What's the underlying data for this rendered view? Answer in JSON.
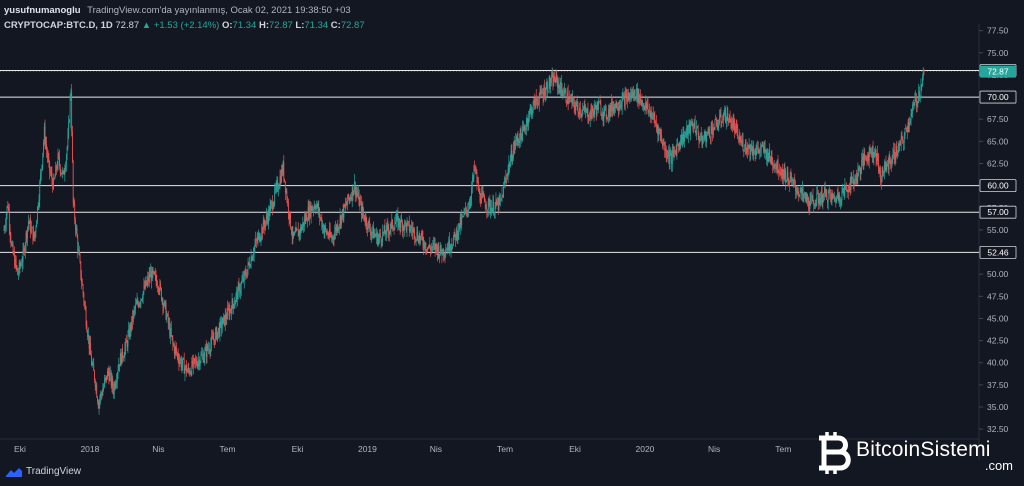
{
  "header": {
    "author": "yusufnumanoglu",
    "published": "TradingView.com'da yayınlanmış, Ocak 02, 2021 19:38:50 +03",
    "symbol": "CRYPTOCAP:BTC.D, 1D",
    "last": "72.87",
    "change": "▲ +1.53 (+2.14%)",
    "o_label": "O:",
    "o_value": "71.34",
    "h_label": "H:",
    "h_value": "72.87",
    "l_label": "L:",
    "l_value": "71.34",
    "c_label": "C:",
    "c_value": "72.87"
  },
  "footer": {
    "logo_text": "TradingView"
  },
  "watermark": {
    "brand": "BitcoinSistemi",
    "suffix": ".com"
  },
  "colors": {
    "background": "#131722",
    "up": "#26a69a",
    "down": "#ef5350",
    "hline": "#ffffff",
    "price_tag": "#26a69a",
    "axis_text": "#b2b5be"
  },
  "chart_data": {
    "type": "candlestick",
    "title": "CRYPTOCAP:BTC.D, 1D",
    "xlabel": "",
    "ylabel": "",
    "x_range": [
      "2017-09-10",
      "2021-01-02"
    ],
    "ylim": [
      31.5,
      77.8
    ],
    "yticks": [
      "32.50",
      "35.00",
      "37.50",
      "40.00",
      "42.50",
      "45.00",
      "47.50",
      "50.00",
      "52.50",
      "55.00",
      "57.50",
      "60.00",
      "62.50",
      "65.00",
      "67.50",
      "70.00",
      "72.50",
      "75.00",
      "77.50"
    ],
    "xticks": [
      {
        "label": "Eki",
        "date": "2017-10-01"
      },
      {
        "label": "2018",
        "date": "2018-01-01"
      },
      {
        "label": "Nis",
        "date": "2018-04-01"
      },
      {
        "label": "Tem",
        "date": "2018-07-01"
      },
      {
        "label": "Eki",
        "date": "2018-10-01"
      },
      {
        "label": "2019",
        "date": "2019-01-01"
      },
      {
        "label": "Nis",
        "date": "2019-04-01"
      },
      {
        "label": "Tem",
        "date": "2019-07-01"
      },
      {
        "label": "Eki",
        "date": "2019-10-01"
      },
      {
        "label": "2020",
        "date": "2020-01-01"
      },
      {
        "label": "Nis",
        "date": "2020-04-01"
      },
      {
        "label": "Tem",
        "date": "2020-07-01"
      }
    ],
    "horizontal_levels": [
      {
        "value": 73.0,
        "label": "73.00"
      },
      {
        "value": 70.0,
        "label": "70.00"
      },
      {
        "value": 60.0,
        "label": "60.00"
      },
      {
        "value": 57.0,
        "label": "57.00"
      },
      {
        "value": 52.46,
        "label": "52.46"
      }
    ],
    "last_price": {
      "value": 72.87,
      "label": "72.87"
    },
    "path": [
      [
        "2017-09-10",
        55
      ],
      [
        "2017-09-15",
        58
      ],
      [
        "2017-09-20",
        53
      ],
      [
        "2017-09-28",
        50
      ],
      [
        "2017-10-05",
        52
      ],
      [
        "2017-10-12",
        56
      ],
      [
        "2017-10-20",
        54
      ],
      [
        "2017-10-27",
        60
      ],
      [
        "2017-11-02",
        66
      ],
      [
        "2017-11-08",
        62
      ],
      [
        "2017-11-14",
        60
      ],
      [
        "2017-11-20",
        63
      ],
      [
        "2017-11-27",
        61
      ],
      [
        "2017-12-03",
        65
      ],
      [
        "2017-12-07",
        71
      ],
      [
        "2017-12-10",
        58
      ],
      [
        "2017-12-15",
        54
      ],
      [
        "2017-12-20",
        50
      ],
      [
        "2017-12-27",
        45
      ],
      [
        "2018-01-03",
        40
      ],
      [
        "2018-01-08",
        38
      ],
      [
        "2018-01-12",
        35.5
      ],
      [
        "2018-01-18",
        37
      ],
      [
        "2018-01-25",
        39
      ],
      [
        "2018-02-01",
        37
      ],
      [
        "2018-02-08",
        40
      ],
      [
        "2018-02-18",
        42
      ],
      [
        "2018-03-01",
        46
      ],
      [
        "2018-03-12",
        48
      ],
      [
        "2018-03-22",
        50
      ],
      [
        "2018-04-01",
        49
      ],
      [
        "2018-04-10",
        46
      ],
      [
        "2018-04-20",
        42
      ],
      [
        "2018-05-01",
        40
      ],
      [
        "2018-05-10",
        39
      ],
      [
        "2018-05-20",
        40
      ],
      [
        "2018-06-01",
        41
      ],
      [
        "2018-06-15",
        43
      ],
      [
        "2018-06-28",
        45
      ],
      [
        "2018-07-10",
        47
      ],
      [
        "2018-07-25",
        50
      ],
      [
        "2018-08-05",
        53
      ],
      [
        "2018-08-15",
        55
      ],
      [
        "2018-08-25",
        57
      ],
      [
        "2018-09-05",
        60
      ],
      [
        "2018-09-12",
        62
      ],
      [
        "2018-09-18",
        58
      ],
      [
        "2018-09-25",
        54
      ],
      [
        "2018-10-05",
        55
      ],
      [
        "2018-10-15",
        57
      ],
      [
        "2018-10-25",
        58
      ],
      [
        "2018-11-05",
        55
      ],
      [
        "2018-11-15",
        54
      ],
      [
        "2018-11-25",
        56
      ],
      [
        "2018-12-05",
        58
      ],
      [
        "2018-12-15",
        60
      ],
      [
        "2018-12-25",
        57
      ],
      [
        "2019-01-05",
        55
      ],
      [
        "2019-01-15",
        54
      ],
      [
        "2019-01-28",
        55
      ],
      [
        "2019-02-08",
        56
      ],
      [
        "2019-02-20",
        55.5
      ],
      [
        "2019-03-01",
        55
      ],
      [
        "2019-03-12",
        54
      ],
      [
        "2019-03-22",
        53
      ],
      [
        "2019-04-01",
        53
      ],
      [
        "2019-04-08",
        52.5
      ],
      [
        "2019-04-15",
        53
      ],
      [
        "2019-04-25",
        54
      ],
      [
        "2019-05-05",
        56
      ],
      [
        "2019-05-15",
        58
      ],
      [
        "2019-05-22",
        62
      ],
      [
        "2019-05-28",
        59
      ],
      [
        "2019-06-05",
        58
      ],
      [
        "2019-06-15",
        57.5
      ],
      [
        "2019-06-25",
        58
      ],
      [
        "2019-07-05",
        62
      ],
      [
        "2019-07-15",
        65
      ],
      [
        "2019-07-25",
        66
      ],
      [
        "2019-08-01",
        68
      ],
      [
        "2019-08-10",
        69.5
      ],
      [
        "2019-08-20",
        70.5
      ],
      [
        "2019-08-28",
        71.5
      ],
      [
        "2019-09-05",
        72
      ],
      [
        "2019-09-12",
        71
      ],
      [
        "2019-09-20",
        70
      ],
      [
        "2019-10-01",
        69
      ],
      [
        "2019-10-10",
        68.5
      ],
      [
        "2019-10-20",
        68
      ],
      [
        "2019-11-01",
        69
      ],
      [
        "2019-11-10",
        68
      ],
      [
        "2019-11-20",
        69
      ],
      [
        "2019-12-01",
        69.5
      ],
      [
        "2019-12-10",
        70
      ],
      [
        "2019-12-20",
        70.5
      ],
      [
        "2020-01-01",
        69
      ],
      [
        "2020-01-10",
        68
      ],
      [
        "2020-01-20",
        66
      ],
      [
        "2020-01-28",
        64
      ],
      [
        "2020-02-05",
        63
      ],
      [
        "2020-02-15",
        65
      ],
      [
        "2020-02-25",
        66
      ],
      [
        "2020-03-05",
        67
      ],
      [
        "2020-03-15",
        65
      ],
      [
        "2020-03-25",
        66
      ],
      [
        "2020-04-05",
        67
      ],
      [
        "2020-04-15",
        68
      ],
      [
        "2020-04-25",
        67
      ],
      [
        "2020-05-05",
        65
      ],
      [
        "2020-05-12",
        64.5
      ],
      [
        "2020-05-25",
        64
      ],
      [
        "2020-06-05",
        64
      ],
      [
        "2020-06-15",
        63
      ],
      [
        "2020-06-25",
        62
      ],
      [
        "2020-07-05",
        61
      ],
      [
        "2020-07-15",
        60
      ],
      [
        "2020-07-25",
        59
      ],
      [
        "2020-08-05",
        58
      ],
      [
        "2020-08-15",
        58.5
      ],
      [
        "2020-08-25",
        59
      ],
      [
        "2020-09-05",
        58.5
      ],
      [
        "2020-09-15",
        59
      ],
      [
        "2020-09-25",
        60
      ],
      [
        "2020-10-05",
        61
      ],
      [
        "2020-10-15",
        63
      ],
      [
        "2020-10-25",
        64
      ],
      [
        "2020-11-01",
        63.5
      ],
      [
        "2020-11-05",
        61
      ],
      [
        "2020-11-12",
        62
      ],
      [
        "2020-11-20",
        63
      ],
      [
        "2020-11-28",
        64
      ],
      [
        "2020-12-05",
        65
      ],
      [
        "2020-12-12",
        67
      ],
      [
        "2020-12-20",
        69
      ],
      [
        "2020-12-27",
        70.5
      ],
      [
        "2021-01-02",
        72.87
      ]
    ]
  }
}
